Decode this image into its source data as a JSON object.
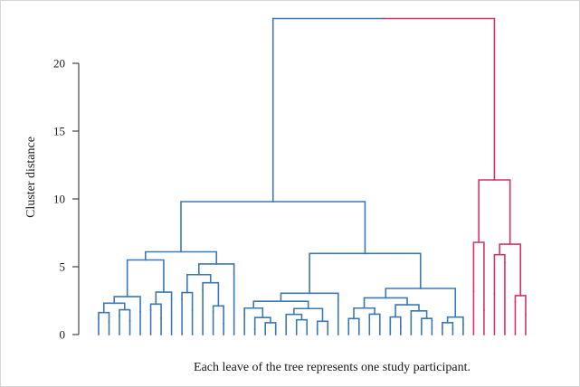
{
  "chart_data": {
    "type": "dendrogram",
    "title": "",
    "ylabel": "Cluster distance",
    "xlabel": "Each leave of the tree represents one study participant.",
    "ylim": [
      0,
      23.5
    ],
    "y_ticks": [
      0,
      5,
      10,
      15,
      20
    ],
    "grid": false,
    "colors": {
      "cluster_1": "#3b78b4",
      "cluster_2": "#d6336c"
    },
    "clusters": [
      {
        "color": "cluster_1",
        "tree": [
          [
            [
              [
                [
                  [
                    [
                      1.2,
                      0.9
                    ],
                    [
                      1.4,
                      1.0
                    ]
                  ],
                  1.7
                ],
                [
                  [
                    1.8,
                    1.2
                  ],
                  2.6
                ]
              ],
              [
                [
                  [
                    2.6,
                    1.8
                  ],
                  [
                    3.3,
                    [
                      1.7,
                      0.8
                    ]
                  ]
                ],
                4.5
              ]
            ],
            [
              [
                [
                  [
                    1.5,
                    [
                      0.4,
                      [
                        0.3,
                        0.5
                      ]
                    ]
                  ],
                  [
                    [
                      0.6,
                      [
                        0.5,
                        0.7
                      ]
                    ],
                    [
                      0.4,
                      0.6
                    ]
                  ]
                ],
                2.5
              ],
              [
                [
                  [
                    [
                      0.8,
                      0.4
                    ],
                    [
                      1.1,
                      0.7
                    ]
                  ],
                  [
                    [
                      0.9,
                      0.6
                    ],
                    [
                      1.3,
                      [
                        0.8,
                        0.5
                      ]
                    ]
                  ]
                ],
                [
                  [
                    0.5,
                    0.4
                  ],
                  0.7
                ]
              ],
              [
                [
                  [
                    0.6,
                    2.3
                  ],
                  [
                    1.1,
                    [
                      0.8,
                      0.9
                    ]
                  ]
                ],
                [
                  [
                    [
                      0.8,
                      1.1
                    ],
                    [
                      1.0,
                      0.6
                    ]
                  ],
                  [
                    [
                      [
                        0.9,
                        1.2
                      ],
                      2.6
                    ],
                    [
                      [
                        1.0,
                        [
                          0.8,
                          1.3
                        ]
                      ],
                      [
                        1.2,
                        0.9
                      ]
                    ]
                  ]
                ]
              ]
            ]
          ],
          [
            9.8,
            6.1,
            5.5,
            3.4
          ]
        ]
      },
      {
        "color": "cluster_2",
        "tree": [
          [
            [
              3.2,
              1.8
            ],
            [
              [
                3.0,
                5.3
              ],
              [
                2.4,
                1.5
              ]
            ]
          ],
          [
            11.4,
            6.8
          ]
        ]
      }
    ],
    "root_height": 23.3
  }
}
